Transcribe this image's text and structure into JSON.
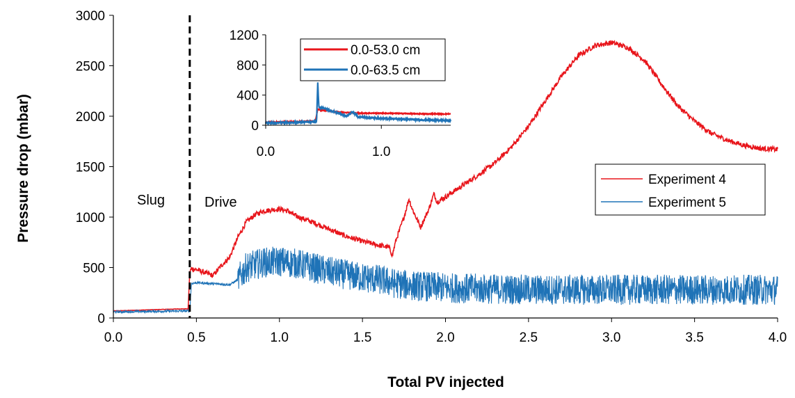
{
  "chart_data": [
    {
      "type": "line",
      "xlabel": "Total PV injected",
      "ylabel": "Pressure drop (mbar)",
      "xlim": [
        0.0,
        4.0
      ],
      "ylim": [
        0,
        3000
      ],
      "xticks": [
        "0.0",
        "0.5",
        "1.0",
        "1.5",
        "2.0",
        "2.5",
        "3.0",
        "3.5",
        "4.0"
      ],
      "yticks": [
        "0",
        "500",
        "1000",
        "1500",
        "2000",
        "2500",
        "3000"
      ],
      "grid": false,
      "legend": "right",
      "annotations": [
        {
          "text": "Slug",
          "x": 0.28,
          "y": 1180
        },
        {
          "text": "Drive",
          "x": 0.67,
          "y": 1150
        },
        {
          "text": "boundary",
          "x": 0.46,
          "style": "dashed-vertical"
        }
      ],
      "series": [
        {
          "name": "Experiment 4",
          "color": "#e8161c",
          "noise": 25,
          "x": [
            0.0,
            0.1,
            0.2,
            0.3,
            0.4,
            0.45,
            0.46,
            0.47,
            0.5,
            0.55,
            0.6,
            0.65,
            0.7,
            0.75,
            0.8,
            0.85,
            0.9,
            0.95,
            1.0,
            1.05,
            1.1,
            1.2,
            1.3,
            1.4,
            1.5,
            1.6,
            1.66,
            1.68,
            1.7,
            1.75,
            1.78,
            1.8,
            1.85,
            1.9,
            1.93,
            1.95,
            2.0,
            2.1,
            2.2,
            2.3,
            2.4,
            2.5,
            2.6,
            2.7,
            2.8,
            2.9,
            3.0,
            3.1,
            3.2,
            3.3,
            3.4,
            3.5,
            3.6,
            3.7,
            3.8,
            3.9,
            4.0
          ],
          "y": [
            70,
            75,
            80,
            85,
            90,
            90,
            450,
            490,
            480,
            450,
            420,
            520,
            600,
            800,
            950,
            1020,
            1060,
            1070,
            1080,
            1060,
            1010,
            950,
            880,
            810,
            760,
            720,
            700,
            620,
            760,
            1000,
            1180,
            1080,
            900,
            1080,
            1230,
            1150,
            1200,
            1310,
            1420,
            1540,
            1700,
            1900,
            2150,
            2400,
            2600,
            2700,
            2730,
            2680,
            2550,
            2320,
            2100,
            1950,
            1830,
            1760,
            1710,
            1680,
            1670
          ]
        },
        {
          "name": "Experiment 5",
          "color": "#1f73b7",
          "noise": 150,
          "x": [
            0.0,
            0.2,
            0.45,
            0.46,
            0.47,
            0.5,
            0.6,
            0.7,
            0.75,
            0.8,
            0.9,
            1.0,
            1.1,
            1.2,
            1.3,
            1.4,
            1.5,
            1.6,
            1.7,
            1.8,
            2.0,
            2.2,
            2.5,
            2.8,
            3.0,
            3.2,
            3.5,
            3.8,
            4.0
          ],
          "y": [
            60,
            65,
            70,
            70,
            340,
            350,
            340,
            330,
            380,
            500,
            550,
            560,
            540,
            500,
            460,
            430,
            400,
            380,
            340,
            320,
            300,
            290,
            280,
            280,
            280,
            280,
            280,
            280,
            280
          ]
        }
      ]
    },
    {
      "type": "line",
      "inset": true,
      "xlim": [
        0.0,
        1.6
      ],
      "ylim": [
        0,
        1200
      ],
      "xticks": [
        "0.0",
        "1.0"
      ],
      "yticks": [
        "0",
        "400",
        "800",
        "1200"
      ],
      "grid": false,
      "legend": "top-right",
      "series": [
        {
          "name": "0.0-53.0 cm",
          "color": "#e8161c",
          "noise": 6,
          "x": [
            0.0,
            0.2,
            0.43,
            0.45,
            0.5,
            0.6,
            0.8,
            1.0,
            1.2,
            1.4,
            1.6
          ],
          "y": [
            40,
            45,
            55,
            210,
            200,
            180,
            160,
            160,
            155,
            150,
            150
          ]
        },
        {
          "name": "0.0-63.5 cm",
          "color": "#1f73b7",
          "noise": 10,
          "x": [
            0.0,
            0.2,
            0.44,
            0.45,
            0.46,
            0.48,
            0.55,
            0.65,
            0.7,
            0.75,
            0.8,
            0.9,
            1.0,
            1.2,
            1.4,
            1.6
          ],
          "y": [
            30,
            35,
            45,
            570,
            230,
            240,
            200,
            150,
            120,
            180,
            110,
            100,
            90,
            80,
            70,
            60
          ]
        }
      ]
    }
  ]
}
